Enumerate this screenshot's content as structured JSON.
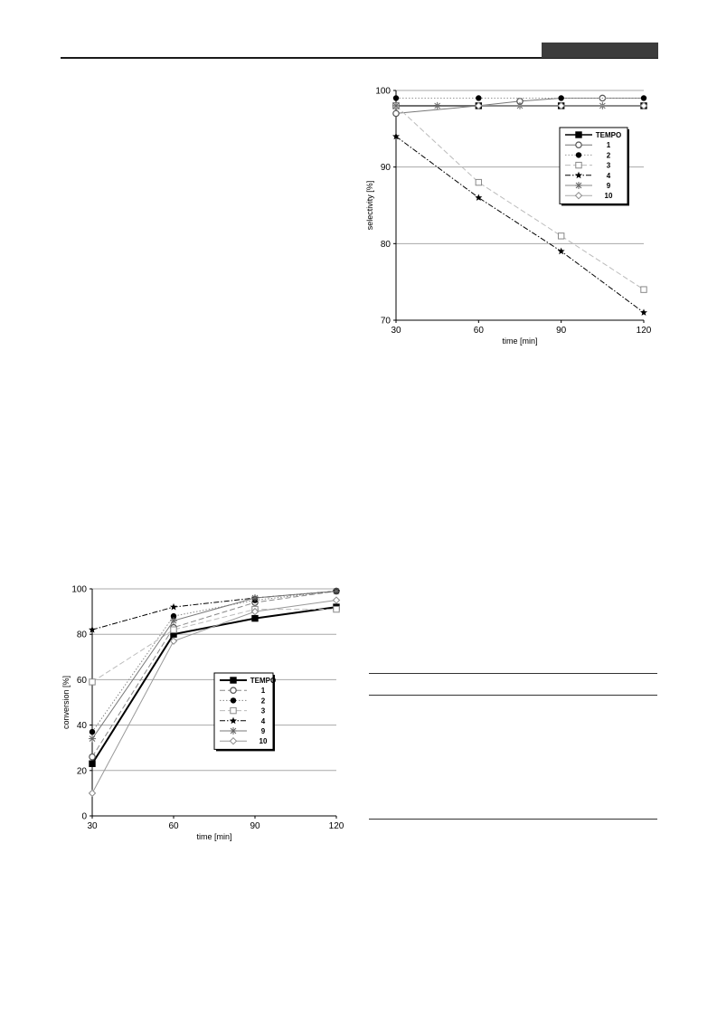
{
  "chart_data": [
    {
      "id": "selectivity",
      "type": "line",
      "title": "",
      "xlabel": "time [min]",
      "ylabel": "selectivity [%]",
      "xlim": [
        30,
        120
      ],
      "ylim": [
        70,
        100
      ],
      "x_ticks": [
        30,
        60,
        90,
        120
      ],
      "y_ticks": [
        70,
        80,
        90,
        100
      ],
      "grid": "horizontal",
      "legend_position": "top-right",
      "series": [
        {
          "name": "TEMPO",
          "x": [
            30,
            60,
            90,
            120
          ],
          "values": [
            98,
            98,
            98,
            98
          ],
          "marker": "filled-square",
          "line": "solid",
          "color": "#000000",
          "width": 1.6
        },
        {
          "name": "1",
          "x": [
            30,
            75,
            105
          ],
          "values": [
            97,
            98.6,
            99
          ],
          "x_full": [
            30,
            60,
            75,
            90,
            105,
            120
          ],
          "values_full": [
            97,
            98,
            98.6,
            99,
            99,
            99
          ],
          "marker": "open-circle",
          "line": "solid",
          "color": "#777777",
          "width": 1
        },
        {
          "name": "2",
          "x": [
            30,
            60,
            90,
            120
          ],
          "values": [
            99,
            99,
            99,
            99
          ],
          "marker": "filled-circle",
          "line": "dotted",
          "color": "#999999",
          "width": 1
        },
        {
          "name": "3",
          "x": [
            30,
            60,
            90,
            120
          ],
          "values": [
            98,
            88,
            81,
            74
          ],
          "marker": "open-square",
          "line": "dashed",
          "color": "#bbbbbb",
          "width": 1
        },
        {
          "name": "4",
          "x": [
            30,
            60,
            90,
            120
          ],
          "values": [
            94,
            86,
            79,
            71
          ],
          "marker": "star",
          "line": "dash-dot",
          "color": "#000000",
          "width": 1
        },
        {
          "name": "9",
          "x": [
            30,
            45,
            75,
            105
          ],
          "values": [
            98,
            98,
            98,
            98
          ],
          "x_full": [
            30,
            45,
            60,
            75,
            90,
            105,
            120
          ],
          "values_full": [
            98,
            98,
            98,
            98,
            98,
            98,
            98
          ],
          "marker": "asterisk",
          "line": "solid",
          "color": "#888888",
          "width": 1
        },
        {
          "name": "10",
          "x": [
            60,
            90,
            120
          ],
          "values": [
            98,
            98,
            98
          ],
          "marker": "open-diamond",
          "line": "solid",
          "color": "#aaaaaa",
          "width": 1
        }
      ]
    },
    {
      "id": "conversion",
      "type": "line",
      "title": "",
      "xlabel": "time [min]",
      "ylabel": "conversion [%]",
      "xlim": [
        30,
        120
      ],
      "ylim": [
        0,
        100
      ],
      "x_ticks": [
        30,
        60,
        90,
        120
      ],
      "y_ticks": [
        0,
        20,
        40,
        60,
        80,
        100
      ],
      "grid": "horizontal",
      "legend_position": "center-right",
      "series": [
        {
          "name": "TEMPO",
          "x": [
            30,
            60,
            90,
            120
          ],
          "values": [
            23,
            80,
            87,
            92
          ],
          "marker": "filled-square",
          "line": "solid",
          "color": "#000000",
          "width": 2
        },
        {
          "name": "1",
          "x": [
            30,
            60,
            90,
            120
          ],
          "values": [
            26,
            83,
            94,
            99
          ],
          "marker": "open-circle",
          "line": "dashed",
          "color": "#888888",
          "width": 1
        },
        {
          "name": "2",
          "x": [
            30,
            60,
            90,
            120
          ],
          "values": [
            37,
            88,
            95,
            99
          ],
          "marker": "filled-circle",
          "line": "dotted",
          "color": "#888888",
          "width": 1
        },
        {
          "name": "3",
          "x": [
            30,
            60,
            90,
            120
          ],
          "values": [
            59,
            82,
            91,
            91
          ],
          "marker": "open-square",
          "line": "dashed",
          "color": "#bbbbbb",
          "width": 1
        },
        {
          "name": "4",
          "x": [
            30,
            60,
            90,
            120
          ],
          "values": [
            82,
            92,
            96,
            99
          ],
          "marker": "star",
          "line": "dash-dot",
          "color": "#000000",
          "width": 1
        },
        {
          "name": "9",
          "x": [
            30,
            60,
            90,
            120
          ],
          "values": [
            34,
            86,
            96,
            99
          ],
          "marker": "asterisk",
          "line": "solid",
          "color": "#777777",
          "width": 1
        },
        {
          "name": "10",
          "x": [
            30,
            60,
            90,
            120
          ],
          "values": [
            10,
            77,
            90,
            95
          ],
          "marker": "open-diamond",
          "line": "solid",
          "color": "#999999",
          "width": 1
        }
      ]
    }
  ]
}
